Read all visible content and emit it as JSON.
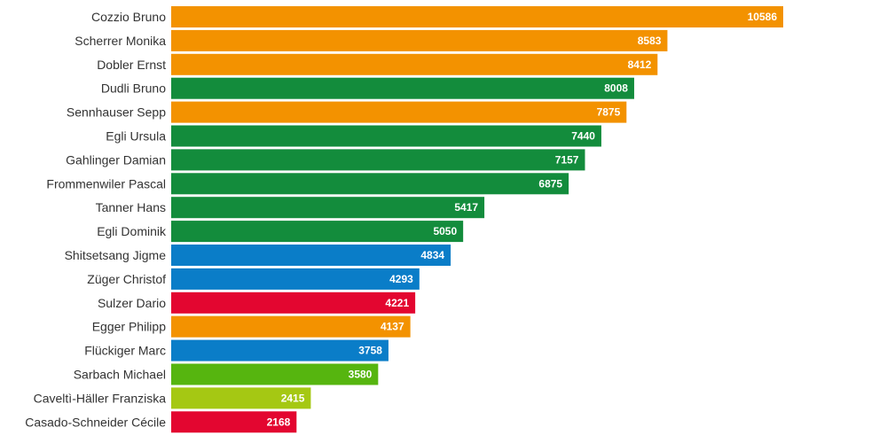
{
  "chart_data": {
    "type": "bar",
    "orientation": "horizontal",
    "categories": [
      "Cozzio Bruno",
      "Scherrer Monika",
      "Dobler Ernst",
      "Dudli Bruno",
      "Sennhauser Sepp",
      "Egli Ursula",
      "Gahlinger Damian",
      "Frommenwiler Pascal",
      "Tanner Hans",
      "Egli Dominik",
      "Shitsetsang Jigme",
      "Züger Christof",
      "Sulzer Dario",
      "Egger Philipp",
      "Flückiger Marc",
      "Sarbach Michael",
      "Caveltì-Häller Franziska",
      "Casado-Schneider Cécile"
    ],
    "values": [
      10586,
      8583,
      8412,
      8008,
      7875,
      7440,
      7157,
      6875,
      5417,
      5050,
      4834,
      4293,
      4221,
      4137,
      3758,
      3580,
      2415,
      2168
    ],
    "value_labels": [
      "10586",
      "8583",
      "8412",
      "8008",
      "7875",
      "7440",
      "7157",
      "6875",
      "5417",
      "5050",
      "4834",
      "4293",
      "4221",
      "4137",
      "3758",
      "3580",
      "2415",
      "2168"
    ],
    "bar_colors": [
      "#f39200",
      "#f39200",
      "#f39200",
      "#138c3c",
      "#f39200",
      "#138c3c",
      "#138c3c",
      "#138c3c",
      "#138c3c",
      "#138c3c",
      "#0a7dc8",
      "#0a7dc8",
      "#e30630",
      "#f39200",
      "#0a7dc8",
      "#56b50f",
      "#a5c813",
      "#e30630"
    ],
    "title": "",
    "xlabel": "",
    "ylabel": "",
    "xlim": [
      0,
      10586
    ],
    "grid": false,
    "legend": "none"
  }
}
